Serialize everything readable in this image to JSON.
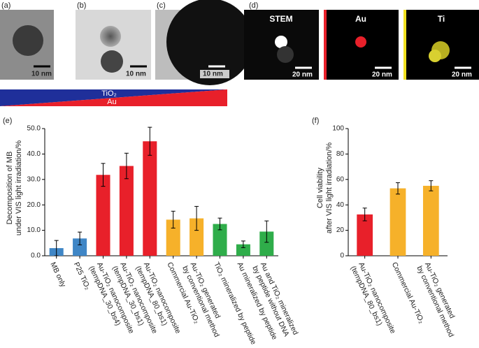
{
  "panels": {
    "labels": [
      "(a)",
      "(b)",
      "(c)",
      "(d)"
    ],
    "scale_a": "10 nm",
    "scale_b": "10 nm",
    "scale_c": "10 nm",
    "d_titles": [
      "STEM",
      "Au",
      "Ti"
    ],
    "d_scales": [
      "20 nm",
      "20 nm",
      "20 nm"
    ],
    "gradient_top": "TiO₂",
    "gradient_bottom": "Au"
  },
  "chart_data": [
    {
      "type": "bar",
      "panel_label": "(e)",
      "y_label": "Decomposition of MB\nunder VIS light irradiation/%",
      "categories": [
        "MB only",
        "P25 TiO₂",
        "Au-TiO₂ nanocomposite\n(tempDNA_30_bs4)",
        "Au-TiO₂ nanocomposite\n(tempDNA_30_bs1)",
        "Au-TiO₂ nanocomposite\n(tempDNA_80_bs1)",
        "Commercial Au-TiO₂",
        "Au-TiO₂ generated\nby conventional method",
        "TiO₂ mineralized by peptide",
        "Au mineralized by peptide",
        "Au and TiO₂ mineralized\nby peptide without DNA"
      ],
      "values": [
        3.0,
        6.8,
        31.8,
        35.3,
        45.0,
        14.2,
        14.7,
        12.5,
        4.5,
        9.5
      ],
      "errors": [
        3.0,
        2.5,
        4.5,
        5.0,
        5.5,
        3.3,
        4.7,
        2.3,
        1.3,
        4.2
      ],
      "colors": [
        "#3f86c6",
        "#3f86c6",
        "#e8202a",
        "#e8202a",
        "#e8202a",
        "#f6b12a",
        "#f6b12a",
        "#2fad4a",
        "#2fad4a",
        "#2fad4a"
      ],
      "ylim": [
        0,
        50
      ],
      "yticks": [
        {
          "value": 0,
          "label": "0.0"
        },
        {
          "value": 10,
          "label": "10.0"
        },
        {
          "value": 20,
          "label": "20.0"
        },
        {
          "value": 30,
          "label": "30.0"
        },
        {
          "value": 40,
          "label": "40.0"
        },
        {
          "value": 50,
          "label": "50.0"
        }
      ]
    },
    {
      "type": "bar",
      "panel_label": "(f)",
      "y_label": "Cell viability\nafter VIS light irradiation/%",
      "categories": [
        "Au-TiO₂ nanocomposite\n(tempDNA_80_bs1)",
        "Commercial Au-TiO₂",
        "Au-TiO₂ generated\nby conventional method"
      ],
      "values": [
        32.5,
        53.0,
        55.0
      ],
      "errors": [
        5.0,
        4.5,
        4.0
      ],
      "colors": [
        "#e8202a",
        "#f6b12a",
        "#f6b12a"
      ],
      "ylim": [
        0,
        100
      ],
      "yticks": [
        0,
        20,
        40,
        60,
        80,
        100
      ]
    }
  ]
}
